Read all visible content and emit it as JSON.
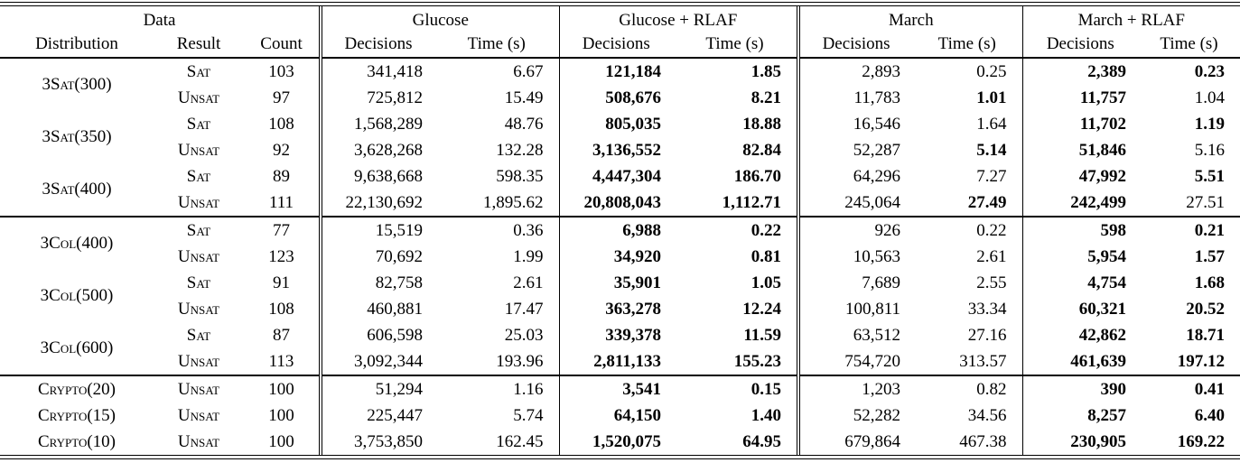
{
  "colors": {
    "text": "#000000",
    "background": "#ffffff",
    "rule": "#000000"
  },
  "table": {
    "header": {
      "groups": [
        {
          "label": "Data",
          "span": 3
        },
        {
          "label": "Glucose",
          "span": 2
        },
        {
          "label": "Glucose + RLAF",
          "span": 2
        },
        {
          "label": "March",
          "span": 2
        },
        {
          "label": "March + RLAF",
          "span": 2
        }
      ],
      "columns": [
        "Distribution",
        "Result",
        "Count",
        "Decisions",
        "Time (s)",
        "Decisions",
        "Time (s)",
        "Decisions",
        "Time (s)",
        "Decisions",
        "Time (s)"
      ]
    },
    "blocks": [
      {
        "entries": [
          {
            "distribution": "3Sat(300)",
            "rows": [
              {
                "result": "Sat",
                "count": "103",
                "values": [
                  {
                    "v": "341,418",
                    "b": false
                  },
                  {
                    "v": "6.67",
                    "b": false
                  },
                  {
                    "v": "121,184",
                    "b": true
                  },
                  {
                    "v": "1.85",
                    "b": true
                  },
                  {
                    "v": "2,893",
                    "b": false
                  },
                  {
                    "v": "0.25",
                    "b": false
                  },
                  {
                    "v": "2,389",
                    "b": true
                  },
                  {
                    "v": "0.23",
                    "b": true
                  }
                ]
              },
              {
                "result": "Unsat",
                "count": "97",
                "values": [
                  {
                    "v": "725,812",
                    "b": false
                  },
                  {
                    "v": "15.49",
                    "b": false
                  },
                  {
                    "v": "508,676",
                    "b": true
                  },
                  {
                    "v": "8.21",
                    "b": true
                  },
                  {
                    "v": "11,783",
                    "b": false
                  },
                  {
                    "v": "1.01",
                    "b": true
                  },
                  {
                    "v": "11,757",
                    "b": true
                  },
                  {
                    "v": "1.04",
                    "b": false
                  }
                ]
              }
            ]
          },
          {
            "distribution": "3Sat(350)",
            "rows": [
              {
                "result": "Sat",
                "count": "108",
                "values": [
                  {
                    "v": "1,568,289",
                    "b": false
                  },
                  {
                    "v": "48.76",
                    "b": false
                  },
                  {
                    "v": "805,035",
                    "b": true
                  },
                  {
                    "v": "18.88",
                    "b": true
                  },
                  {
                    "v": "16,546",
                    "b": false
                  },
                  {
                    "v": "1.64",
                    "b": false
                  },
                  {
                    "v": "11,702",
                    "b": true
                  },
                  {
                    "v": "1.19",
                    "b": true
                  }
                ]
              },
              {
                "result": "Unsat",
                "count": "92",
                "values": [
                  {
                    "v": "3,628,268",
                    "b": false
                  },
                  {
                    "v": "132.28",
                    "b": false
                  },
                  {
                    "v": "3,136,552",
                    "b": true
                  },
                  {
                    "v": "82.84",
                    "b": true
                  },
                  {
                    "v": "52,287",
                    "b": false
                  },
                  {
                    "v": "5.14",
                    "b": true
                  },
                  {
                    "v": "51,846",
                    "b": true
                  },
                  {
                    "v": "5.16",
                    "b": false
                  }
                ]
              }
            ]
          },
          {
            "distribution": "3Sat(400)",
            "rows": [
              {
                "result": "Sat",
                "count": "89",
                "values": [
                  {
                    "v": "9,638,668",
                    "b": false
                  },
                  {
                    "v": "598.35",
                    "b": false
                  },
                  {
                    "v": "4,447,304",
                    "b": true
                  },
                  {
                    "v": "186.70",
                    "b": true
                  },
                  {
                    "v": "64,296",
                    "b": false
                  },
                  {
                    "v": "7.27",
                    "b": false
                  },
                  {
                    "v": "47,992",
                    "b": true
                  },
                  {
                    "v": "5.51",
                    "b": true
                  }
                ]
              },
              {
                "result": "Unsat",
                "count": "111",
                "values": [
                  {
                    "v": "22,130,692",
                    "b": false
                  },
                  {
                    "v": "1,895.62",
                    "b": false
                  },
                  {
                    "v": "20,808,043",
                    "b": true
                  },
                  {
                    "v": "1,112.71",
                    "b": true
                  },
                  {
                    "v": "245,064",
                    "b": false
                  },
                  {
                    "v": "27.49",
                    "b": true
                  },
                  {
                    "v": "242,499",
                    "b": true
                  },
                  {
                    "v": "27.51",
                    "b": false
                  }
                ]
              }
            ]
          }
        ]
      },
      {
        "entries": [
          {
            "distribution": "3Col(400)",
            "rows": [
              {
                "result": "Sat",
                "count": "77",
                "values": [
                  {
                    "v": "15,519",
                    "b": false
                  },
                  {
                    "v": "0.36",
                    "b": false
                  },
                  {
                    "v": "6,988",
                    "b": true
                  },
                  {
                    "v": "0.22",
                    "b": true
                  },
                  {
                    "v": "926",
                    "b": false
                  },
                  {
                    "v": "0.22",
                    "b": false
                  },
                  {
                    "v": "598",
                    "b": true
                  },
                  {
                    "v": "0.21",
                    "b": true
                  }
                ]
              },
              {
                "result": "Unsat",
                "count": "123",
                "values": [
                  {
                    "v": "70,692",
                    "b": false
                  },
                  {
                    "v": "1.99",
                    "b": false
                  },
                  {
                    "v": "34,920",
                    "b": true
                  },
                  {
                    "v": "0.81",
                    "b": true
                  },
                  {
                    "v": "10,563",
                    "b": false
                  },
                  {
                    "v": "2.61",
                    "b": false
                  },
                  {
                    "v": "5,954",
                    "b": true
                  },
                  {
                    "v": "1.57",
                    "b": true
                  }
                ]
              }
            ]
          },
          {
            "distribution": "3Col(500)",
            "rows": [
              {
                "result": "Sat",
                "count": "91",
                "values": [
                  {
                    "v": "82,758",
                    "b": false
                  },
                  {
                    "v": "2.61",
                    "b": false
                  },
                  {
                    "v": "35,901",
                    "b": true
                  },
                  {
                    "v": "1.05",
                    "b": true
                  },
                  {
                    "v": "7,689",
                    "b": false
                  },
                  {
                    "v": "2.55",
                    "b": false
                  },
                  {
                    "v": "4,754",
                    "b": true
                  },
                  {
                    "v": "1.68",
                    "b": true
                  }
                ]
              },
              {
                "result": "Unsat",
                "count": "108",
                "values": [
                  {
                    "v": "460,881",
                    "b": false
                  },
                  {
                    "v": "17.47",
                    "b": false
                  },
                  {
                    "v": "363,278",
                    "b": true
                  },
                  {
                    "v": "12.24",
                    "b": true
                  },
                  {
                    "v": "100,811",
                    "b": false
                  },
                  {
                    "v": "33.34",
                    "b": false
                  },
                  {
                    "v": "60,321",
                    "b": true
                  },
                  {
                    "v": "20.52",
                    "b": true
                  }
                ]
              }
            ]
          },
          {
            "distribution": "3Col(600)",
            "rows": [
              {
                "result": "Sat",
                "count": "87",
                "values": [
                  {
                    "v": "606,598",
                    "b": false
                  },
                  {
                    "v": "25.03",
                    "b": false
                  },
                  {
                    "v": "339,378",
                    "b": true
                  },
                  {
                    "v": "11.59",
                    "b": true
                  },
                  {
                    "v": "63,512",
                    "b": false
                  },
                  {
                    "v": "27.16",
                    "b": false
                  },
                  {
                    "v": "42,862",
                    "b": true
                  },
                  {
                    "v": "18.71",
                    "b": true
                  }
                ]
              },
              {
                "result": "Unsat",
                "count": "113",
                "values": [
                  {
                    "v": "3,092,344",
                    "b": false
                  },
                  {
                    "v": "193.96",
                    "b": false
                  },
                  {
                    "v": "2,811,133",
                    "b": true
                  },
                  {
                    "v": "155.23",
                    "b": true
                  },
                  {
                    "v": "754,720",
                    "b": false
                  },
                  {
                    "v": "313.57",
                    "b": false
                  },
                  {
                    "v": "461,639",
                    "b": true
                  },
                  {
                    "v": "197.12",
                    "b": true
                  }
                ]
              }
            ]
          }
        ]
      },
      {
        "entries": [
          {
            "distribution": "Crypto(20)",
            "rows": [
              {
                "result": "Unsat",
                "count": "100",
                "values": [
                  {
                    "v": "51,294",
                    "b": false
                  },
                  {
                    "v": "1.16",
                    "b": false
                  },
                  {
                    "v": "3,541",
                    "b": true
                  },
                  {
                    "v": "0.15",
                    "b": true
                  },
                  {
                    "v": "1,203",
                    "b": false
                  },
                  {
                    "v": "0.82",
                    "b": false
                  },
                  {
                    "v": "390",
                    "b": true
                  },
                  {
                    "v": "0.41",
                    "b": true
                  }
                ]
              }
            ]
          },
          {
            "distribution": "Crypto(15)",
            "rows": [
              {
                "result": "Unsat",
                "count": "100",
                "values": [
                  {
                    "v": "225,447",
                    "b": false
                  },
                  {
                    "v": "5.74",
                    "b": false
                  },
                  {
                    "v": "64,150",
                    "b": true
                  },
                  {
                    "v": "1.40",
                    "b": true
                  },
                  {
                    "v": "52,282",
                    "b": false
                  },
                  {
                    "v": "34.56",
                    "b": false
                  },
                  {
                    "v": "8,257",
                    "b": true
                  },
                  {
                    "v": "6.40",
                    "b": true
                  }
                ]
              }
            ]
          },
          {
            "distribution": "Crypto(10)",
            "rows": [
              {
                "result": "Unsat",
                "count": "100",
                "values": [
                  {
                    "v": "3,753,850",
                    "b": false
                  },
                  {
                    "v": "162.45",
                    "b": false
                  },
                  {
                    "v": "1,520,075",
                    "b": true
                  },
                  {
                    "v": "64.95",
                    "b": true
                  },
                  {
                    "v": "679,864",
                    "b": false
                  },
                  {
                    "v": "467.38",
                    "b": false
                  },
                  {
                    "v": "230,905",
                    "b": true
                  },
                  {
                    "v": "169.22",
                    "b": true
                  }
                ]
              }
            ]
          }
        ]
      }
    ]
  }
}
